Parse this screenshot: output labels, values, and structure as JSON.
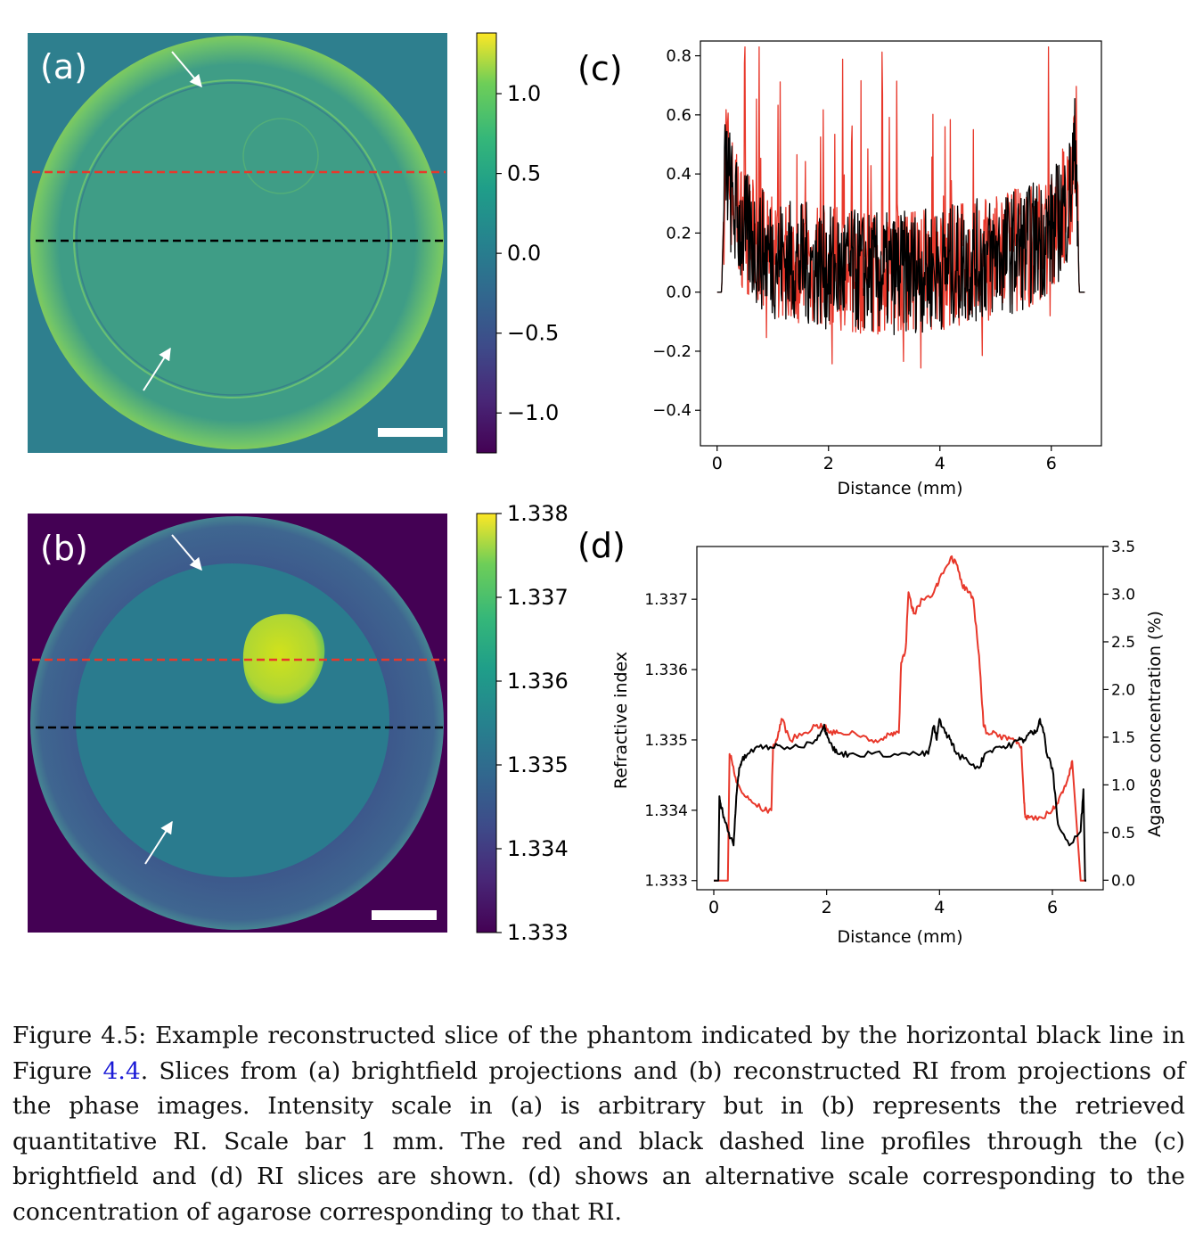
{
  "panels": {
    "a": {
      "label": "(a)",
      "colorbar_ticks": [
        "1.0",
        "0.5",
        "0.0",
        "−0.5",
        "−1.0"
      ],
      "colorbar_values": [
        1.0,
        0.5,
        0.0,
        -0.5,
        -1.0
      ],
      "colorbar_range": [
        -1.25,
        1.38
      ]
    },
    "b": {
      "label": "(b)",
      "colorbar_ticks": [
        "1.338",
        "1.337",
        "1.336",
        "1.335",
        "1.334",
        "1.333"
      ],
      "colorbar_values": [
        1.338,
        1.337,
        1.336,
        1.335,
        1.334,
        1.333
      ],
      "colorbar_range": [
        1.333,
        1.338
      ]
    }
  },
  "chart_data": [
    {
      "panel": "(c)",
      "type": "line",
      "title": "",
      "xlabel": "Distance (mm)",
      "ylabel": "",
      "xlim": [
        -0.3,
        6.9
      ],
      "ylim": [
        -0.52,
        0.85
      ],
      "x_ticks": [
        0,
        2,
        4,
        6
      ],
      "x_tick_labels": [
        "0",
        "2",
        "4",
        "6"
      ],
      "y_ticks": [
        -0.4,
        -0.2,
        0.0,
        0.2,
        0.4,
        0.6,
        0.8
      ],
      "y_tick_labels": [
        "−0.4",
        "−0.2",
        "0.0",
        "0.2",
        "0.4",
        "0.6",
        "0.8"
      ],
      "series": [
        {
          "color": "#e8382b",
          "x": [
            0.0,
            0.08,
            0.15,
            0.25,
            0.35,
            0.5,
            0.75,
            1.0,
            1.5,
            2.0,
            2.5,
            3.0,
            3.5,
            4.0,
            4.5,
            5.0,
            5.5,
            6.0,
            6.3,
            6.45,
            6.5,
            6.6
          ],
          "y": [
            0.0,
            0.0,
            0.5,
            0.35,
            0.28,
            0.2,
            0.15,
            0.12,
            0.1,
            0.08,
            0.07,
            0.06,
            0.07,
            0.08,
            0.1,
            0.12,
            0.15,
            0.2,
            0.3,
            0.5,
            0.0,
            0.0
          ]
        },
        {
          "color": "#000000",
          "x": [
            0.0,
            0.08,
            0.15,
            0.25,
            0.35,
            0.5,
            0.75,
            1.0,
            1.5,
            2.0,
            2.5,
            3.0,
            3.5,
            4.0,
            4.5,
            5.0,
            5.5,
            6.0,
            6.3,
            6.45,
            6.5,
            6.6
          ],
          "y": [
            0.0,
            0.0,
            0.45,
            0.32,
            0.25,
            0.2,
            0.15,
            0.12,
            0.1,
            0.08,
            0.07,
            0.06,
            0.07,
            0.08,
            0.1,
            0.12,
            0.15,
            0.2,
            0.3,
            0.5,
            0.0,
            0.0
          ]
        }
      ]
    },
    {
      "panel": "(d)",
      "type": "line",
      "title": "",
      "xlabel": "Distance (mm)",
      "ylabel": "Refractive index",
      "y2label": "Agarose concentration (%)",
      "xlim": [
        -0.3,
        6.9
      ],
      "ylim": [
        1.33287,
        1.33775
      ],
      "y2lim": [
        -0.1,
        3.5
      ],
      "x_ticks": [
        0,
        2,
        4,
        6
      ],
      "x_tick_labels": [
        "0",
        "2",
        "4",
        "6"
      ],
      "y_ticks": [
        1.333,
        1.334,
        1.335,
        1.336,
        1.337
      ],
      "y_tick_labels": [
        "1.333",
        "1.334",
        "1.335",
        "1.336",
        "1.337"
      ],
      "y2_ticks": [
        0.0,
        0.5,
        1.0,
        1.5,
        2.0,
        2.5,
        3.0,
        3.5
      ],
      "y2_tick_labels": [
        "0.0",
        "0.5",
        "1.0",
        "1.5",
        "2.0",
        "2.5",
        "3.0",
        "3.5"
      ],
      "series": [
        {
          "color": "#e8382b",
          "x": [
            0.0,
            0.25,
            0.28,
            0.32,
            0.4,
            0.55,
            0.7,
            0.9,
            1.02,
            1.05,
            1.12,
            1.2,
            1.35,
            1.6,
            1.8,
            1.95,
            2.05,
            2.2,
            2.5,
            2.8,
            3.0,
            3.15,
            3.28,
            3.32,
            3.4,
            3.45,
            3.5,
            3.55,
            3.7,
            3.9,
            4.0,
            4.2,
            4.3,
            4.4,
            4.5,
            4.6,
            4.7,
            4.78,
            4.85,
            5.0,
            5.2,
            5.35,
            5.45,
            5.5,
            5.52,
            5.6,
            5.8,
            6.0,
            6.1,
            6.2,
            6.3,
            6.35,
            6.5,
            6.6
          ],
          "y": [
            1.333,
            1.333,
            1.3348,
            1.3347,
            1.3344,
            1.3342,
            1.3341,
            1.334,
            1.334,
            1.3349,
            1.335,
            1.3353,
            1.335,
            1.3351,
            1.3352,
            1.3352,
            1.3351,
            1.3351,
            1.3351,
            1.335,
            1.335,
            1.3351,
            1.3351,
            1.3361,
            1.3363,
            1.3371,
            1.3369,
            1.3368,
            1.337,
            1.3371,
            1.3373,
            1.3376,
            1.3375,
            1.3372,
            1.3371,
            1.337,
            1.3362,
            1.3352,
            1.3351,
            1.3351,
            1.335,
            1.335,
            1.3349,
            1.3341,
            1.3339,
            1.3339,
            1.3339,
            1.334,
            1.3341,
            1.3343,
            1.3345,
            1.3347,
            1.333,
            1.333
          ]
        },
        {
          "color": "#000000",
          "x": [
            0.0,
            0.08,
            0.1,
            0.12,
            0.18,
            0.25,
            0.35,
            0.4,
            0.45,
            0.5,
            0.6,
            0.8,
            1.0,
            1.2,
            1.5,
            1.8,
            1.95,
            2.0,
            2.1,
            2.2,
            2.4,
            2.8,
            3.2,
            3.6,
            3.8,
            3.9,
            3.95,
            4.0,
            4.1,
            4.2,
            4.3,
            4.5,
            4.7,
            4.8,
            5.0,
            5.2,
            5.4,
            5.5,
            5.6,
            5.7,
            5.78,
            5.85,
            5.9,
            6.0,
            6.1,
            6.3,
            6.5,
            6.55,
            6.58,
            6.6
          ],
          "y": [
            1.333,
            1.333,
            1.3342,
            1.3341,
            1.3339,
            1.3337,
            1.3335,
            1.3342,
            1.3346,
            1.3347,
            1.3348,
            1.3349,
            1.3349,
            1.3349,
            1.3349,
            1.335,
            1.3352,
            1.3351,
            1.3349,
            1.3348,
            1.3348,
            1.3348,
            1.3348,
            1.3348,
            1.3348,
            1.3352,
            1.335,
            1.3353,
            1.3351,
            1.335,
            1.3348,
            1.3347,
            1.3346,
            1.3348,
            1.3349,
            1.3349,
            1.335,
            1.335,
            1.3351,
            1.3351,
            1.3353,
            1.3351,
            1.3348,
            1.3346,
            1.3338,
            1.3335,
            1.3337,
            1.3343,
            1.333,
            1.333
          ]
        }
      ]
    }
  ],
  "caption": {
    "part1": "Figure 4.5: Example reconstructed slice of the phantom indicated by the horizontal black line in Figure ",
    "ref": "4.4",
    "part2": ". Slices from (a) brightfield projections and (b) reconstructed RI from projections of the phase images. Intensity scale in (a) is arbitrary but in (b) represents the retrieved quantitative RI. Scale bar 1 mm. The red and black dashed line profiles through the (c) brightfield and (d) RI slices are shown. (d) shows an alternative scale corresponding to the concentration of agarose corresponding to that RI."
  },
  "colors": {
    "viridis_low": "#440154",
    "viridis_mid": "#21918c",
    "viridis_high": "#fde725",
    "red": "#e8382b"
  }
}
